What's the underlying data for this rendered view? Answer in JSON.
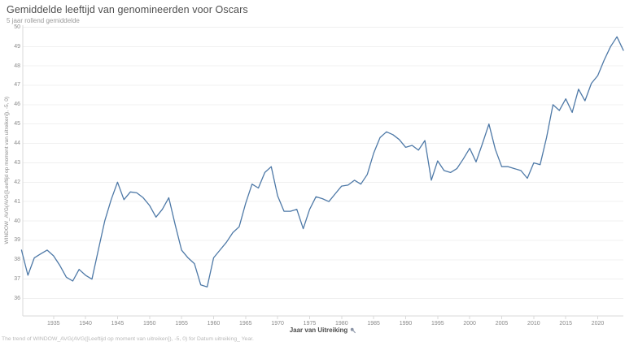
{
  "header": {
    "title": "Gemiddelde leeftijd van genomineerden voor Oscars",
    "subtitle": "5 jaar rollend gemiddelde"
  },
  "axes": {
    "y_title": "WINDOW_AVG(AVG([Leeftijd op moment van uitreiken]), -5, 0)",
    "x_title": "Jaar van Uitreiking",
    "x_title_icon": "pin-icon"
  },
  "footer": {
    "text": "The trend of WINDOW_AVG(AVG([Leeftijd op moment van uitreiken]), -5, 0) for Datum uitreiking_ Year."
  },
  "colors": {
    "line": "#4e79a7",
    "grid": "#f0f0f0",
    "axis": "#d9d9d9",
    "tick_text": "#8a8a8a"
  },
  "chart_data": {
    "type": "line",
    "title": "Gemiddelde leeftijd van genomineerden voor Oscars",
    "subtitle": "5 jaar rollend gemiddelde",
    "xlabel": "Jaar van Uitreiking",
    "ylabel": "WINDOW_AVG(AVG([Leeftijd op moment van uitreiken]), -5, 0)",
    "grid": "horizontal only",
    "legend": "none",
    "xlim": [
      1930.2,
      2024
    ],
    "ylim": [
      35.1,
      50.1
    ],
    "x_ticks": [
      1935,
      1940,
      1945,
      1950,
      1955,
      1960,
      1965,
      1970,
      1975,
      1980,
      1985,
      1990,
      1995,
      2000,
      2005,
      2010,
      2015,
      2020
    ],
    "y_ticks": [
      36,
      37,
      38,
      39,
      40,
      41,
      42,
      43,
      44,
      45,
      46,
      47,
      48,
      49,
      50
    ],
    "series": [
      {
        "name": "5 jaar rollend gemiddelde",
        "x": [
          1930,
          1931,
          1932,
          1933,
          1934,
          1935,
          1936,
          1937,
          1938,
          1939,
          1940,
          1941,
          1942,
          1943,
          1944,
          1945,
          1946,
          1947,
          1948,
          1949,
          1950,
          1951,
          1952,
          1953,
          1954,
          1955,
          1956,
          1957,
          1958,
          1959,
          1960,
          1961,
          1962,
          1963,
          1964,
          1965,
          1966,
          1967,
          1968,
          1969,
          1970,
          1971,
          1972,
          1973,
          1974,
          1975,
          1976,
          1977,
          1978,
          1979,
          1980,
          1981,
          1982,
          1983,
          1984,
          1985,
          1986,
          1987,
          1988,
          1989,
          1990,
          1991,
          1992,
          1993,
          1994,
          1995,
          1996,
          1997,
          1998,
          1999,
          2000,
          2001,
          2002,
          2003,
          2004,
          2005,
          2006,
          2007,
          2008,
          2009,
          2010,
          2011,
          2012,
          2013,
          2014,
          2015,
          2016,
          2017,
          2018,
          2019,
          2020,
          2021,
          2022,
          2023,
          2024
        ],
        "y": [
          38.5,
          37.2,
          38.1,
          38.3,
          38.5,
          38.2,
          37.7,
          37.1,
          36.9,
          37.5,
          37.2,
          37.0,
          38.5,
          40.0,
          41.1,
          42.0,
          41.1,
          41.5,
          41.45,
          41.2,
          40.8,
          40.2,
          40.6,
          41.2,
          39.8,
          38.5,
          38.1,
          37.8,
          36.7,
          36.6,
          38.1,
          38.5,
          38.9,
          39.4,
          39.7,
          40.9,
          41.9,
          41.7,
          42.5,
          42.8,
          41.3,
          40.5,
          40.5,
          40.6,
          39.6,
          40.6,
          41.25,
          41.15,
          41.0,
          41.4,
          41.8,
          41.85,
          42.1,
          41.9,
          42.4,
          43.5,
          44.3,
          44.6,
          44.45,
          44.2,
          43.8,
          43.9,
          43.65,
          44.15,
          42.1,
          43.1,
          42.6,
          42.5,
          42.7,
          43.2,
          43.75,
          43.05,
          44.0,
          45.0,
          43.7,
          42.8,
          42.8,
          42.7,
          42.6,
          42.2,
          43.0,
          42.9,
          44.3,
          46.0,
          45.7,
          46.3,
          45.6,
          46.8,
          46.2,
          47.1,
          47.5,
          48.3,
          49.0,
          49.5,
          48.8
        ]
      }
    ]
  }
}
